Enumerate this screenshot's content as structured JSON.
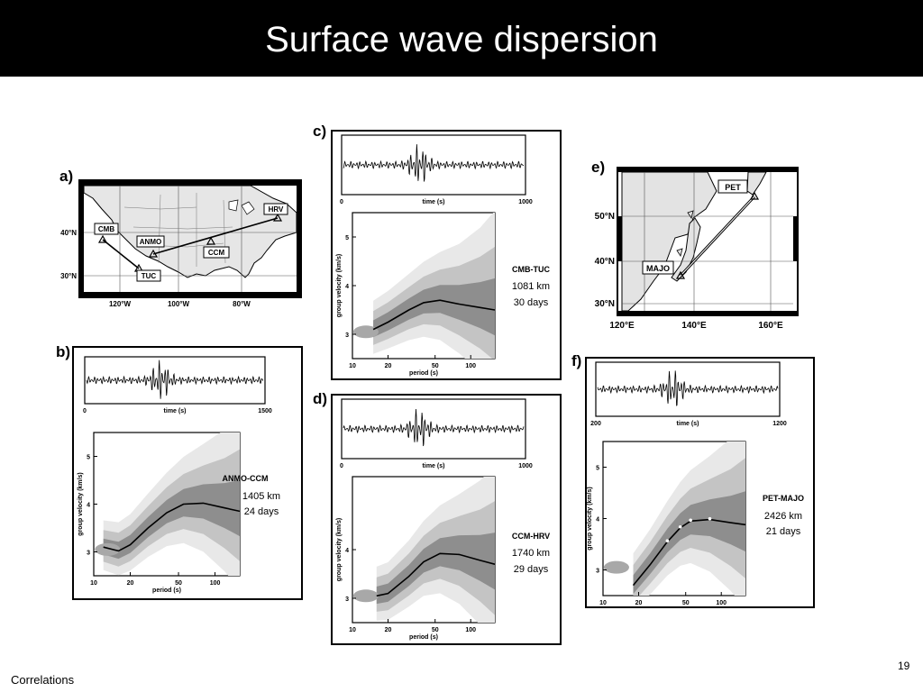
{
  "slide": {
    "title": "Surface wave dispersion",
    "footer": "Correlations",
    "page_number": "19"
  },
  "map_a": {
    "label": "a)",
    "stations": [
      "CMB",
      "ANMO",
      "HRV",
      "CCM",
      "TUC"
    ],
    "lat_labels": [
      "40°N",
      "30°N"
    ],
    "lon_labels": [
      "120°W",
      "100°W",
      "80°W"
    ]
  },
  "map_e": {
    "label": "e)",
    "stations": [
      "PET",
      "MAJO"
    ],
    "lat_labels": [
      "50°N",
      "40°N",
      "30°N"
    ],
    "lon_labels": [
      "120°E",
      "140°E",
      "160°E"
    ]
  },
  "panels": [
    {
      "id": "b",
      "label": "b)",
      "seis_xticks": [
        "0",
        "time (s)",
        "1500"
      ],
      "pair": "ANMO-CCM",
      "distance": "1405 km",
      "duration": "24 days",
      "disp_xticks": [
        "10",
        "20",
        "50",
        "100"
      ],
      "xlabel": "period (s)",
      "ylabel": "group velocity (km/s)",
      "disp_yticks": [
        "5",
        "4",
        "3"
      ],
      "curve": [
        [
          12,
          3.1
        ],
        [
          16,
          3.02
        ],
        [
          20,
          3.15
        ],
        [
          28,
          3.5
        ],
        [
          40,
          3.82
        ],
        [
          55,
          4.0
        ],
        [
          80,
          4.02
        ],
        [
          120,
          3.92
        ],
        [
          160,
          3.85
        ]
      ]
    },
    {
      "id": "c",
      "label": "c)",
      "seis_xticks": [
        "0",
        "time (s)",
        "1000"
      ],
      "pair": "CMB-TUC",
      "distance": "1081 km",
      "duration": "30 days",
      "disp_xticks": [
        "10",
        "20",
        "50",
        "100"
      ],
      "xlabel": "period (s)",
      "ylabel": "group velocity (km/s)",
      "disp_yticks": [
        "5",
        "4",
        "3"
      ],
      "curve": [
        [
          15,
          3.1
        ],
        [
          20,
          3.25
        ],
        [
          30,
          3.5
        ],
        [
          40,
          3.65
        ],
        [
          55,
          3.7
        ],
        [
          80,
          3.62
        ],
        [
          120,
          3.55
        ],
        [
          160,
          3.5
        ]
      ]
    },
    {
      "id": "d",
      "label": "d)",
      "seis_xticks": [
        "0",
        "time (s)",
        "1000"
      ],
      "pair": "CCM-HRV",
      "distance": "1740 km",
      "duration": "29 days",
      "disp_xticks": [
        "10",
        "20",
        "50",
        "100"
      ],
      "xlabel": "period (s)",
      "ylabel": "group velocity (km/s)",
      "disp_yticks": [
        "4",
        "3"
      ],
      "curve": [
        [
          16,
          3.05
        ],
        [
          20,
          3.1
        ],
        [
          30,
          3.45
        ],
        [
          40,
          3.75
        ],
        [
          55,
          3.92
        ],
        [
          80,
          3.9
        ],
        [
          120,
          3.78
        ],
        [
          160,
          3.7
        ]
      ]
    },
    {
      "id": "f",
      "label": "f)",
      "seis_xticks": [
        "200",
        "time (s)",
        "1200"
      ],
      "pair": "PET-MAJO",
      "distance": "2426 km",
      "duration": "21 days",
      "disp_xticks": [
        "10",
        "20",
        "50",
        "100"
      ],
      "xlabel": "period (s)",
      "ylabel": "group velocity (km/s)",
      "disp_yticks": [
        "5",
        "4",
        "3"
      ],
      "curve": [
        [
          18,
          2.7
        ],
        [
          25,
          3.1
        ],
        [
          35,
          3.55
        ],
        [
          45,
          3.82
        ],
        [
          55,
          3.95
        ],
        [
          80,
          3.98
        ],
        [
          120,
          3.92
        ],
        [
          160,
          3.88
        ]
      ]
    }
  ]
}
